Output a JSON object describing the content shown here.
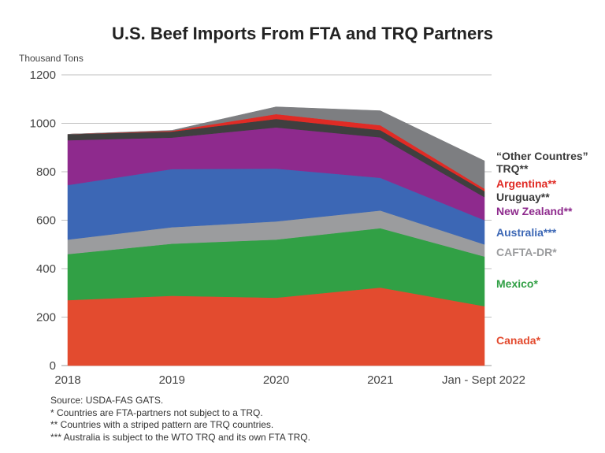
{
  "chart_data": {
    "type": "area",
    "title": "U.S. Beef Imports From FTA and TRQ Partners",
    "ylabel": "Thousand Tons",
    "xlabel": "",
    "categories": [
      "2018",
      "2019",
      "2020",
      "2021",
      "Jan - Sept 2022"
    ],
    "ylim": [
      0,
      1200
    ],
    "yticks": [
      0,
      200,
      400,
      600,
      800,
      1000,
      1200
    ],
    "stacked": true,
    "grid": true,
    "legend_position": "right",
    "series": [
      {
        "name": "Canada*",
        "color": "#E34B2F",
        "values": [
          270,
          288,
          280,
          322,
          245
        ]
      },
      {
        "name": "Mexico*",
        "color": "#31A045",
        "values": [
          190,
          215,
          240,
          245,
          205
        ]
      },
      {
        "name": "CAFTA-DR*",
        "color": "#9B9C9E",
        "values": [
          60,
          68,
          75,
          73,
          50
        ]
      },
      {
        "name": "Australia***",
        "color": "#3C67B5",
        "values": [
          225,
          240,
          218,
          135,
          100
        ]
      },
      {
        "name": "New Zealand**",
        "color": "#8E2A8D",
        "values": [
          185,
          130,
          170,
          167,
          95
        ]
      },
      {
        "name": "Uruguay**",
        "color": "#3F3F3F",
        "values": [
          25,
          25,
          35,
          30,
          25
        ]
      },
      {
        "name": "Argentina**",
        "color": "#E02B25",
        "values": [
          0,
          3,
          20,
          20,
          10
        ]
      },
      {
        "name": "“Other Countres” TRQ**",
        "color": "#7D7E81",
        "values": [
          0,
          2,
          30,
          60,
          115
        ]
      }
    ],
    "source": "Source: USDA-FAS GATS.",
    "notes": [
      "* Countries are FTA-partners not subject to a TRQ.",
      "** Countries with a striped pattern are TRQ countries.",
      "*** Australia is subject to the WTO TRQ and its own FTA TRQ."
    ]
  },
  "legend": [
    {
      "lines": [
        "“Other Countres”",
        "TRQ**"
      ],
      "color": "#3A3A3A"
    },
    {
      "lines": [
        "Argentina**"
      ],
      "color": "#E02B25"
    },
    {
      "lines": [
        "Uruguay**"
      ],
      "color": "#3A3A3A"
    },
    {
      "lines": [
        "New Zealand**"
      ],
      "color": "#8E2A8D"
    },
    {
      "lines": [
        "Australia***"
      ],
      "color": "#3C67B5"
    },
    {
      "lines": [
        "CAFTA-DR*"
      ],
      "color": "#9B9C9E"
    },
    {
      "lines": [
        "Mexico*"
      ],
      "color": "#31A045"
    },
    {
      "lines": [
        "Canada*"
      ],
      "color": "#E34B2F"
    }
  ]
}
